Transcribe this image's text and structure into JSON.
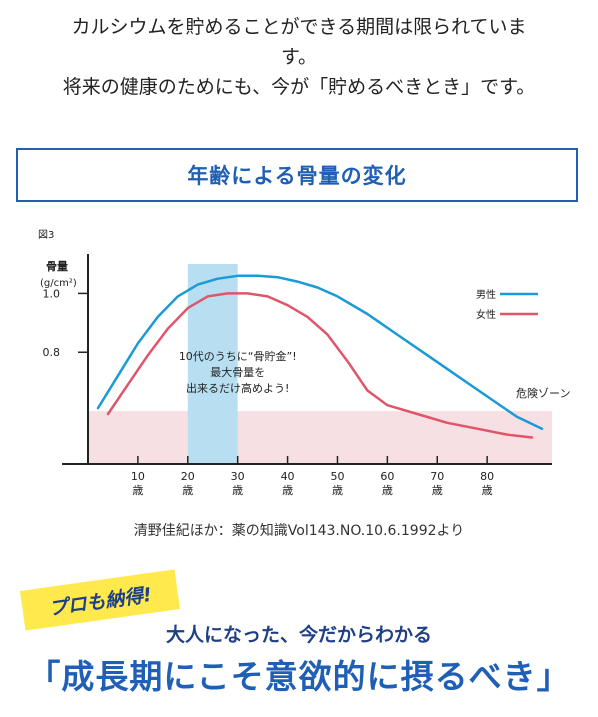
{
  "intro": {
    "line1": "カルシウムを貯めることができる期間は限られていま",
    "line2": "す。",
    "line3": "将来の健康のためにも、今が「貯めるべきとき」です。"
  },
  "chart_title": "年齢による骨量の変化",
  "chart_data": {
    "type": "line",
    "figure_label": "図3",
    "ylabel": "骨量\n(g/cm²)",
    "ylabel_line1": "骨量",
    "ylabel_line2": "(g/cm²)",
    "ytick_labels": [
      "1.0",
      "0.8"
    ],
    "yticks": [
      1.0,
      0.8
    ],
    "xtick_labels": [
      "10\n歳",
      "20\n歳",
      "30\n歳",
      "40\n歳",
      "50\n歳",
      "60\n歳",
      "70\n歳",
      "80\n歳"
    ],
    "xticks": [
      10,
      20,
      30,
      40,
      50,
      60,
      70,
      80
    ],
    "xlim": [
      0,
      93
    ],
    "ylim": [
      0.42,
      1.1
    ],
    "grid": false,
    "legend_position": "top-right",
    "series": [
      {
        "name": "男性",
        "color": "#1a9ad6",
        "x": [
          2,
          6,
          10,
          14,
          18,
          22,
          26,
          30,
          34,
          38,
          42,
          46,
          50,
          56,
          62,
          68,
          74,
          80,
          86,
          91
        ],
        "y": [
          0.61,
          0.72,
          0.83,
          0.92,
          0.99,
          1.03,
          1.05,
          1.06,
          1.06,
          1.055,
          1.04,
          1.02,
          0.99,
          0.93,
          0.86,
          0.79,
          0.72,
          0.65,
          0.58,
          0.54
        ]
      },
      {
        "name": "女性",
        "color": "#e0556a",
        "x": [
          4,
          8,
          12,
          16,
          20,
          24,
          28,
          32,
          36,
          40,
          44,
          48,
          52,
          56,
          60,
          66,
          72,
          78,
          84,
          89
        ],
        "y": [
          0.59,
          0.69,
          0.79,
          0.88,
          0.95,
          0.99,
          1.0,
          1.0,
          0.99,
          0.96,
          0.92,
          0.86,
          0.77,
          0.67,
          0.62,
          0.59,
          0.56,
          0.54,
          0.52,
          0.51
        ]
      }
    ],
    "highlight_band": {
      "x_range": [
        20,
        30
      ],
      "color": "#b7def1",
      "annotation": [
        "10代のうちに“骨貯金”!",
        "最大骨量を",
        "出来るだけ高めよう!"
      ]
    },
    "danger_zone": {
      "y_max": 0.6,
      "color": "#f7e0e3",
      "label": "危険ゾーン"
    }
  },
  "source_text": "清野佳紀ほか：薬の知識Vol143.NO.10.6.1992より",
  "badge_text": "プロも納得!",
  "subhead_text": "大人になった、今だからわかる",
  "headline_text": "「成長期にこそ意欲的に摂るべき」"
}
